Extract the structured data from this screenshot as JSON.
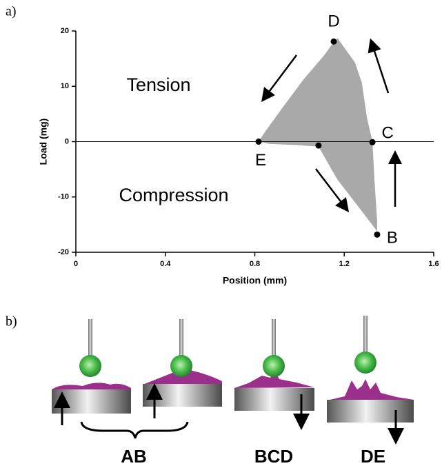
{
  "panel_labels": [
    "a)",
    "b)"
  ],
  "chart_data": {
    "type": "area",
    "xlabel": "Position (mm)",
    "ylabel": "Load (mg)",
    "xlim": [
      0,
      1.6
    ],
    "xticks": [
      0,
      0.4,
      0.8,
      1.2,
      1.6
    ],
    "ylim": [
      -20,
      20
    ],
    "yticks": [
      -20,
      -10,
      0,
      10,
      20
    ],
    "annotations": [
      "Tension",
      "Compression"
    ],
    "series": [
      {
        "color": "#a9a9a9",
        "x": [
          0.817,
          0.848,
          0.925,
          1.017,
          1.11,
          1.153,
          1.17,
          1.248,
          1.279,
          1.301,
          1.326,
          1.335,
          1.347,
          1.347,
          1.264,
          1.17,
          1.085,
          0.987,
          0.863
        ],
        "values": [
          0,
          1.9,
          6.2,
          11.2,
          15.6,
          18,
          18.7,
          14.3,
          10.6,
          4.4,
          0,
          -6.9,
          -14.3,
          -16.2,
          -11.8,
          -6.9,
          -0.9,
          -0.6,
          -0.4
        ]
      }
    ],
    "points": [
      {
        "label": "E",
        "x": 0.817,
        "y": 0
      },
      {
        "label": null,
        "x": 1.085,
        "y": -0.7
      },
      {
        "label": "C",
        "x": 1.326,
        "y": -0.1
      },
      {
        "label": "D",
        "x": 1.153,
        "y": 18.1
      },
      {
        "label": "B",
        "x": 1.347,
        "y": -16.8
      }
    ]
  },
  "diagram": {
    "labels": [
      "AB",
      "BCD",
      "DE"
    ]
  }
}
